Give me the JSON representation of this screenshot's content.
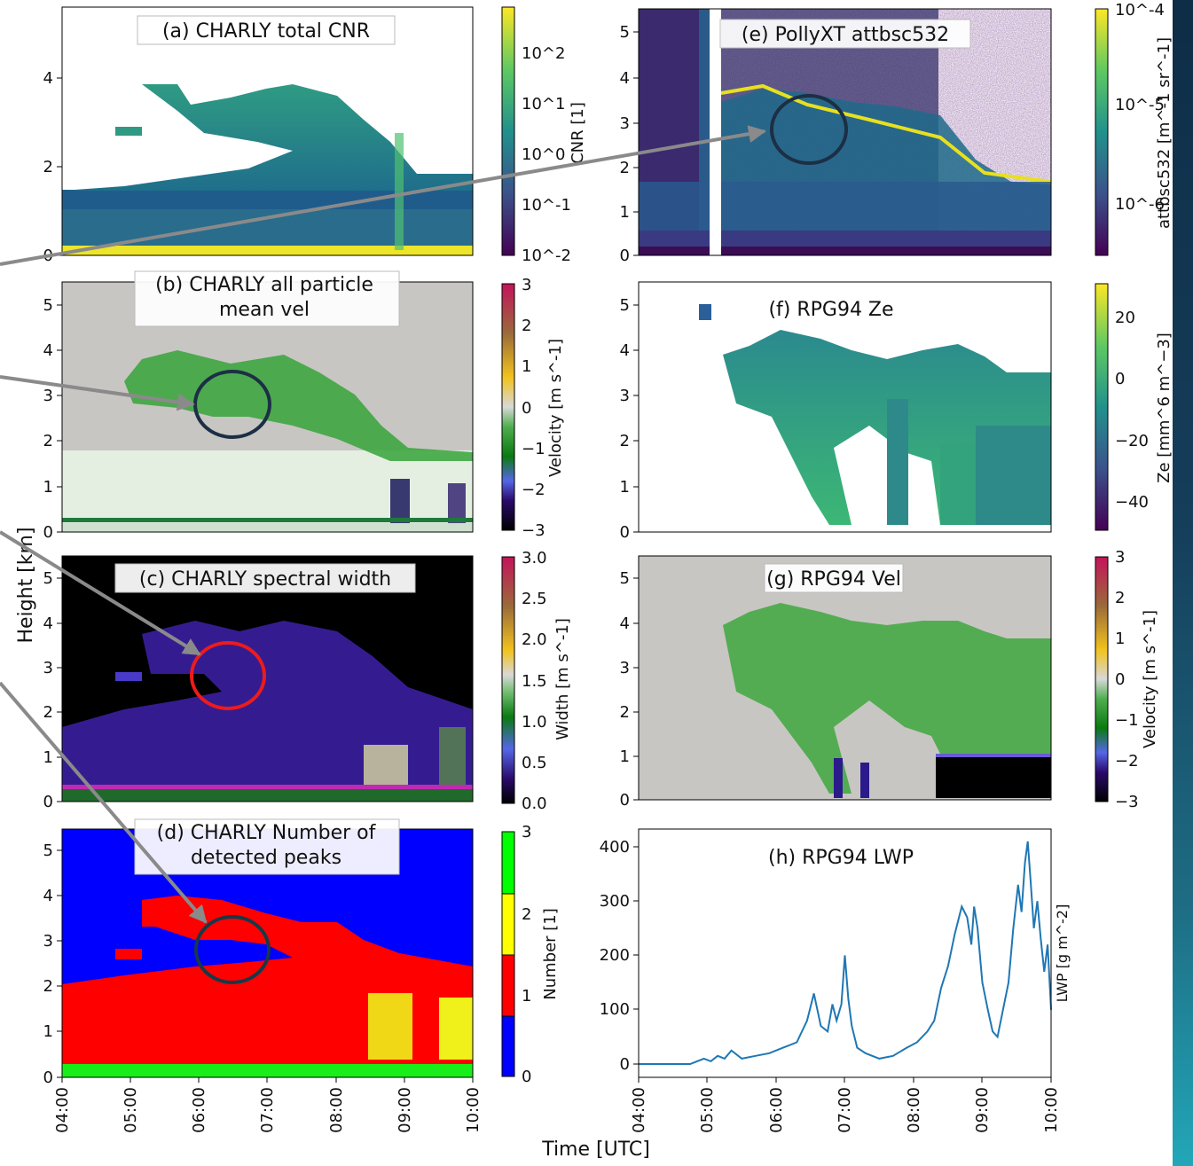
{
  "figure": {
    "shared_ylabel": "Height [km]",
    "shared_xlabel": "Time [UTC]",
    "time_ticks": [
      "04:00",
      "05:00",
      "06:00",
      "07:00",
      "08:00",
      "09:00",
      "10:00"
    ]
  },
  "panels": {
    "a": {
      "title": "(a) CHARLY total CNR",
      "yticks": [
        "0",
        "2",
        "4"
      ],
      "cbar_label": "CNR [1]",
      "cbar_ticks": [
        "10^-2",
        "10^-1",
        "10^0",
        "10^1",
        "10^2"
      ]
    },
    "b": {
      "title_l1": "(b) CHARLY all particle",
      "title_l2": "mean vel",
      "yticks": [
        "0",
        "1",
        "2",
        "3",
        "4",
        "5"
      ],
      "cbar_label": "Velocity [m s^-1]",
      "cbar_ticks": [
        "−3",
        "−2",
        "−1",
        "0",
        "1",
        "2",
        "3"
      ]
    },
    "c": {
      "title": "(c) CHARLY spectral width",
      "yticks": [
        "0",
        "1",
        "2",
        "3",
        "4",
        "5"
      ],
      "cbar_label": "Width [m s^-1]",
      "cbar_ticks": [
        "0.0",
        "0.5",
        "1.0",
        "1.5",
        "2.0",
        "2.5",
        "3.0"
      ]
    },
    "d": {
      "title_l1": "(d) CHARLY Number of",
      "title_l2": "detected peaks",
      "yticks": [
        "0",
        "1",
        "2",
        "3",
        "4",
        "5"
      ],
      "cbar_label": "Number [1]",
      "cbar_ticks": [
        "0",
        "1",
        "2",
        "3"
      ]
    },
    "e": {
      "title": "(e) PollyXT attbsc532",
      "yticks": [
        "0",
        "1",
        "2",
        "3",
        "4",
        "5"
      ],
      "cbar_label": "attbsc532 [m^-1 sr^-1]",
      "cbar_ticks": [
        "10^-6",
        "10^-5",
        "10^-4"
      ]
    },
    "f": {
      "title": "(f) RPG94 Ze",
      "yticks": [
        "0",
        "1",
        "2",
        "3",
        "4",
        "5"
      ],
      "cbar_label": "Ze [mm^6 m^−3]",
      "cbar_ticks": [
        "−40",
        "−20",
        "0",
        "20"
      ]
    },
    "g": {
      "title": "(g) RPG94 Vel",
      "yticks": [
        "0",
        "1",
        "2",
        "3",
        "4",
        "5"
      ],
      "cbar_label": "Velocity [m s^-1]",
      "cbar_ticks": [
        "−3",
        "−2",
        "−1",
        "0",
        "1",
        "2",
        "3"
      ]
    },
    "h": {
      "title": "(h) RPG94 LWP",
      "yticks": [
        "0",
        "100",
        "200",
        "300",
        "400"
      ],
      "ylabel": "LWP [g m^-2]"
    }
  },
  "chart_data": [
    {
      "panel": "a",
      "type": "heatmap",
      "title": "(a) CHARLY total CNR",
      "ylabel": "Height [km]",
      "xlabel": "Time [UTC]",
      "x_range": [
        "04:00",
        "10:00"
      ],
      "ylim": [
        0,
        5.5
      ],
      "scale": "log",
      "colorbar_range": [
        0.01,
        300
      ]
    },
    {
      "panel": "b",
      "type": "heatmap",
      "title": "(b) CHARLY all particle mean vel",
      "x_range": [
        "04:00",
        "10:00"
      ],
      "ylim": [
        0,
        5.5
      ],
      "colorbar_range": [
        -3,
        3
      ]
    },
    {
      "panel": "c",
      "type": "heatmap",
      "title": "(c) CHARLY spectral width",
      "x_range": [
        "04:00",
        "10:00"
      ],
      "ylim": [
        0,
        5.5
      ],
      "colorbar_range": [
        0,
        3
      ]
    },
    {
      "panel": "d",
      "type": "heatmap",
      "title": "(d) CHARLY Number of detected peaks",
      "x_range": [
        "04:00",
        "10:00"
      ],
      "ylim": [
        0,
        5.5
      ],
      "colorbar_range": [
        0,
        3
      ],
      "categories": [
        0,
        1,
        2,
        3
      ],
      "category_colors": [
        "#0000ff",
        "#ff0000",
        "#ffff00",
        "#00ff00"
      ]
    },
    {
      "panel": "e",
      "type": "heatmap",
      "title": "(e) PollyXT attbsc532",
      "x_range": [
        "04:00",
        "10:00"
      ],
      "ylim": [
        0,
        5.5
      ],
      "scale": "log",
      "colorbar_range": [
        1e-06,
        0.0001
      ]
    },
    {
      "panel": "f",
      "type": "heatmap",
      "title": "(f) RPG94 Ze",
      "x_range": [
        "04:00",
        "10:00"
      ],
      "ylim": [
        0,
        5.5
      ],
      "colorbar_range": [
        -50,
        30
      ]
    },
    {
      "panel": "g",
      "type": "heatmap",
      "title": "(g) RPG94 Vel",
      "x_range": [
        "04:00",
        "10:00"
      ],
      "ylim": [
        0,
        5.5
      ],
      "colorbar_range": [
        -3,
        3
      ]
    },
    {
      "panel": "h",
      "type": "line",
      "title": "(h) RPG94 LWP",
      "ylabel": "LWP [g m^-2]",
      "xlabel": "Time [UTC]",
      "ylim": [
        -20,
        420
      ],
      "series": [
        {
          "color": "#1f77b4",
          "x": [
            4.0,
            4.5,
            4.75,
            4.85,
            4.95,
            5.05,
            5.15,
            5.25,
            5.35,
            5.5,
            5.7,
            5.9,
            6.1,
            6.3,
            6.45,
            6.55,
            6.65,
            6.75,
            6.82,
            6.88,
            6.95,
            7.0,
            7.05,
            7.1,
            7.18,
            7.3,
            7.5,
            7.7,
            7.9,
            8.05,
            8.2,
            8.3,
            8.4,
            8.5,
            8.6,
            8.7,
            8.78,
            8.84,
            8.88,
            8.93,
            9.0,
            9.08,
            9.15,
            9.22,
            9.3,
            9.38,
            9.45,
            9.52,
            9.57,
            9.62,
            9.66,
            9.7,
            9.75,
            9.8,
            9.85,
            9.9,
            9.95,
            10.0
          ],
          "y": [
            0,
            0,
            0,
            5,
            10,
            5,
            15,
            10,
            25,
            10,
            15,
            20,
            30,
            40,
            80,
            130,
            70,
            60,
            110,
            80,
            110,
            200,
            120,
            70,
            30,
            20,
            10,
            15,
            30,
            40,
            60,
            80,
            140,
            180,
            240,
            290,
            270,
            220,
            290,
            250,
            150,
            100,
            60,
            50,
            100,
            150,
            250,
            330,
            280,
            370,
            410,
            340,
            250,
            300,
            230,
            170,
            220,
            100
          ]
        }
      ]
    }
  ]
}
